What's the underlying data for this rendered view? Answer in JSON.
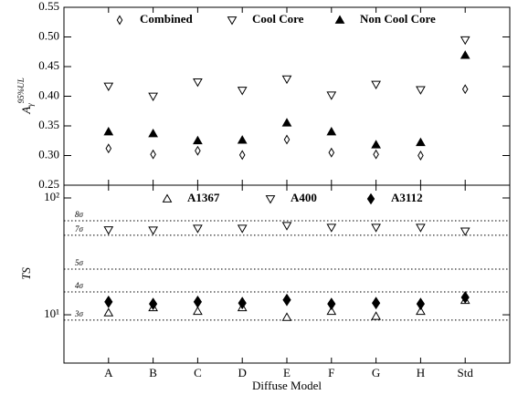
{
  "chart_data": [
    {
      "type": "scatter",
      "ylabel": {
        "base": "A",
        "sub": "γ",
        "sup": "95%UL"
      },
      "ylim": [
        0.25,
        0.55
      ],
      "yticks": [
        0.25,
        {
          "value": 0.3,
          "label": "0.30"
        },
        0.35,
        {
          "value": 0.4,
          "label": "0.40"
        },
        0.45,
        {
          "value": 0.5,
          "label": "0.50"
        },
        0.55
      ],
      "series": [
        {
          "name": "Combined",
          "color": "#000000",
          "marker": "diamond-open",
          "values": [
            0.312,
            0.302,
            0.308,
            0.301,
            0.327,
            0.305,
            0.302,
            0.3,
            0.412
          ]
        },
        {
          "name": "Cool Core",
          "color": "#000000",
          "marker": "triangle-down-open",
          "values": [
            0.417,
            0.4,
            0.424,
            0.41,
            0.429,
            0.402,
            0.42,
            0.411,
            0.495
          ]
        },
        {
          "name": "Non Cool Core",
          "color": "#000000",
          "marker": "triangle-up-filled",
          "values": [
            0.34,
            0.337,
            0.325,
            0.326,
            0.355,
            0.34,
            0.318,
            0.322,
            0.469
          ]
        }
      ]
    },
    {
      "type": "scatter",
      "ylabel": "TS",
      "xlabel": "Diffuse Model",
      "categories": [
        "A",
        "B",
        "C",
        "D",
        "E",
        "F",
        "G",
        "H",
        "Std"
      ],
      "log_y": true,
      "ylim": [
        3.86,
        128.6
      ],
      "yticks": [
        {
          "value": 10,
          "label": "10¹"
        },
        {
          "value": 100,
          "label": "10²"
        }
      ],
      "reference_lines": [
        {
          "value": 9.0,
          "label": "3σ"
        },
        {
          "value": 15.7,
          "label": "4σ"
        },
        {
          "value": 24.6,
          "label": "5σ"
        },
        {
          "value": 47.9,
          "label": "7σ"
        },
        {
          "value": 63.8,
          "label": "8σ"
        }
      ],
      "series": [
        {
          "name": "A1367",
          "color": "#000000",
          "marker": "triangle-up-open",
          "values": [
            10.4,
            11.5,
            10.7,
            11.5,
            9.5,
            10.7,
            9.7,
            10.7,
            13.3
          ]
        },
        {
          "name": "A400",
          "color": "#000000",
          "marker": "triangle-down-open",
          "values": [
            53.3,
            53,
            55,
            55,
            58,
            56,
            56,
            56,
            52
          ]
        },
        {
          "name": "A3112",
          "color": "#000000",
          "marker": "diamond-filled",
          "values": [
            12.9,
            12.4,
            12.9,
            12.6,
            13.4,
            12.4,
            12.6,
            12.4,
            14.1
          ]
        }
      ]
    }
  ]
}
